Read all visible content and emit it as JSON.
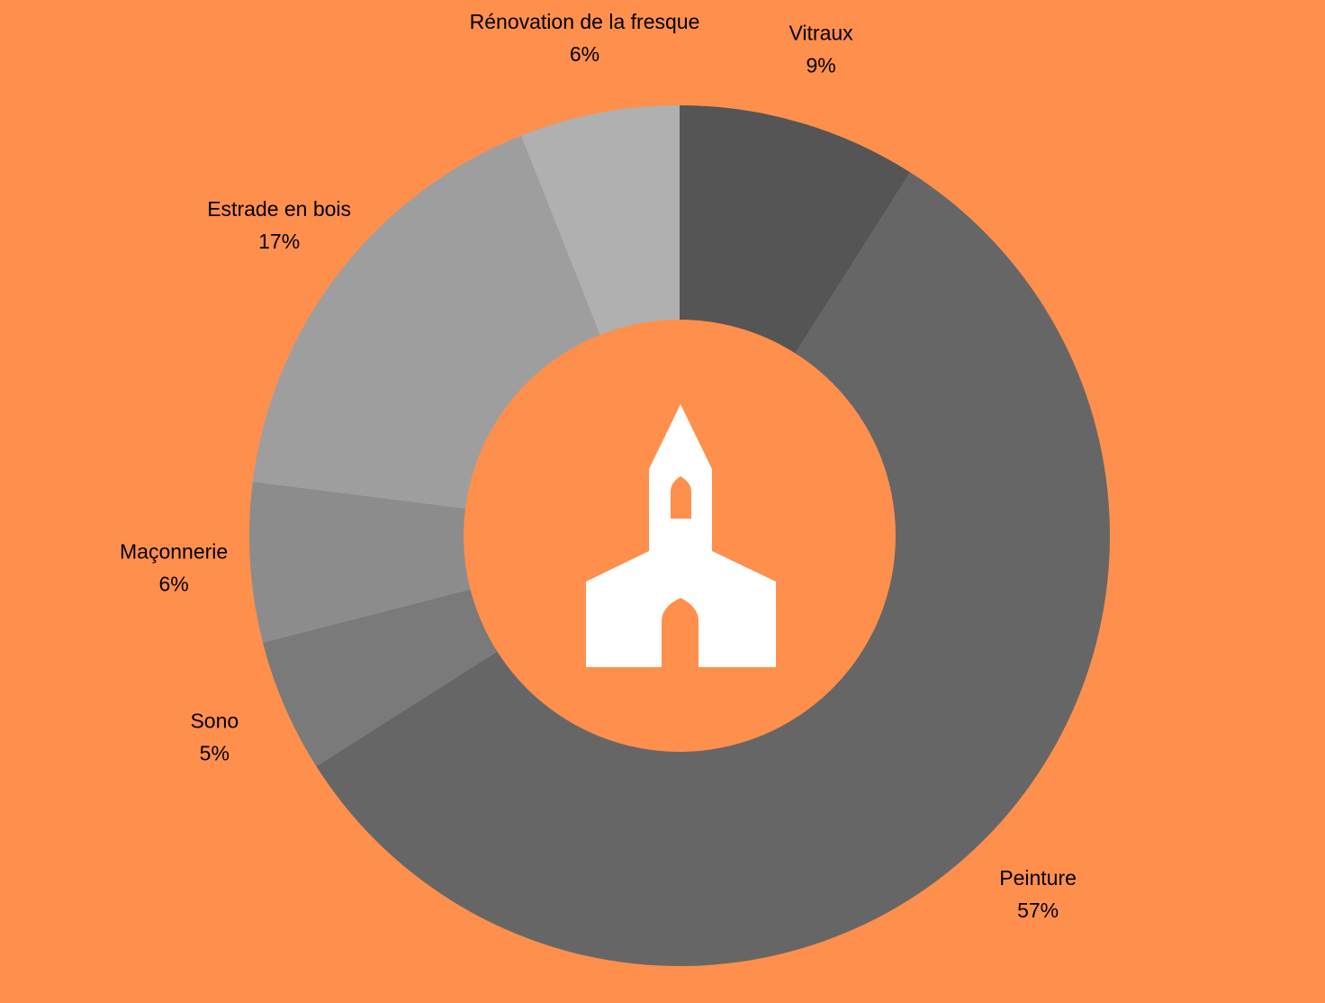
{
  "background_color": "#FF8F4D",
  "center_icon": "church-icon",
  "icon_color": "#FFFFFF",
  "chart_data": {
    "type": "pie",
    "donut": true,
    "categories": [
      "Vitraux",
      "Peinture",
      "Sono",
      "Maçonnerie",
      "Estrade en bois",
      "Rénovation de la fresque"
    ],
    "values": [
      9,
      57,
      5,
      6,
      17,
      6
    ],
    "value_labels": [
      "9%",
      "57%",
      "5%",
      "6%",
      "17%",
      "6%"
    ],
    "colors": [
      "#555555",
      "#666666",
      "#7A7A7A",
      "#8C8C8C",
      "#9E9E9E",
      "#B0B0B0"
    ],
    "legend": "none",
    "labels_outside": true
  }
}
